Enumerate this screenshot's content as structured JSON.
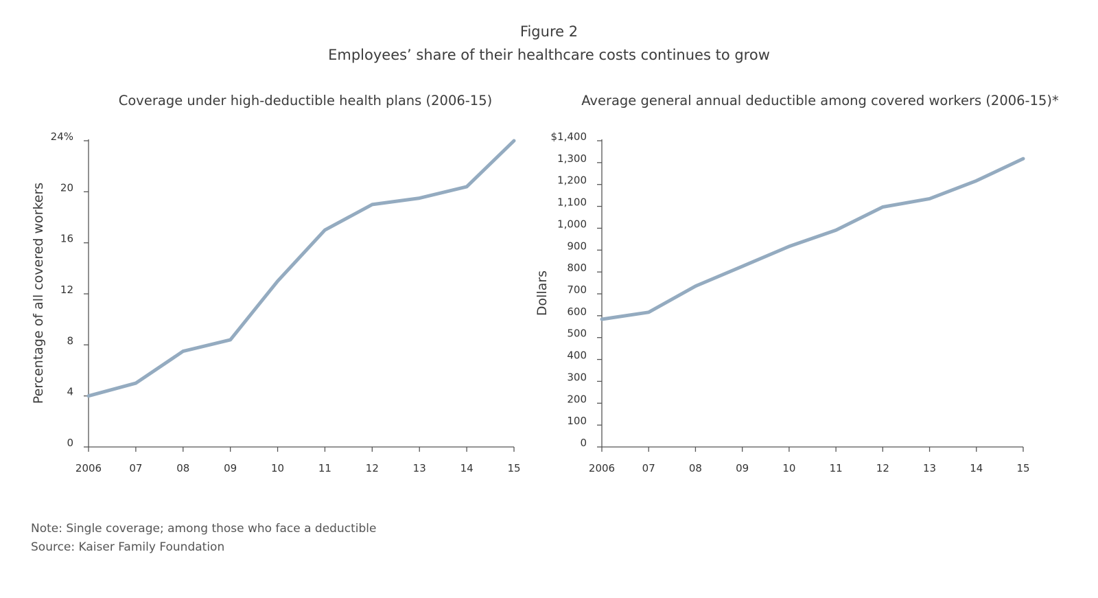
{
  "header": {
    "figure_label": "Figure 2",
    "title": "Employees’ share of their healthcare costs continues to grow"
  },
  "footer": {
    "note": "Note: Single coverage; among those who face a deductible",
    "source": "Source: Kaiser Family Foundation"
  },
  "colors": {
    "line": "#94abc0",
    "axis": "#555555",
    "text": "#3c3c3c"
  },
  "chart_data": [
    {
      "type": "line",
      "title": "Coverage under high-deductible health plans (2006-15)",
      "xlabel": "",
      "ylabel": "Percentage of all covered workers",
      "categories": [
        "2006",
        "07",
        "08",
        "09",
        "10",
        "11",
        "12",
        "13",
        "14",
        "15"
      ],
      "series": [
        {
          "values": [
            4,
            5,
            7.5,
            8.4,
            13,
            17,
            19,
            19.5,
            20.4,
            24
          ]
        }
      ],
      "ylim": [
        0,
        24
      ],
      "yticks": [
        0,
        4,
        8,
        12,
        16,
        20,
        24
      ],
      "ytick_labels": [
        "0",
        "4",
        "8",
        "12",
        "16",
        "20",
        "24%"
      ],
      "grid": false,
      "legend": "none"
    },
    {
      "type": "line",
      "title": "Average general annual deductible among covered workers (2006-15)*",
      "xlabel": "",
      "ylabel": "Dollars",
      "categories": [
        "2006",
        "07",
        "08",
        "09",
        "10",
        "11",
        "12",
        "13",
        "14",
        "15"
      ],
      "series": [
        {
          "values": [
            584,
            616,
            735,
            826,
            917,
            991,
            1097,
            1135,
            1217,
            1318
          ]
        }
      ],
      "ylim": [
        0,
        1400
      ],
      "yticks": [
        0,
        100,
        200,
        300,
        400,
        500,
        600,
        700,
        800,
        900,
        1000,
        1100,
        1200,
        1300,
        1400
      ],
      "ytick_labels": [
        "0",
        "100",
        "200",
        "300",
        "400",
        "500",
        "600",
        "700",
        "800",
        "900",
        "1,000",
        "1,100",
        "1,200",
        "1,300",
        "$1,400"
      ],
      "grid": false,
      "legend": "none"
    }
  ]
}
